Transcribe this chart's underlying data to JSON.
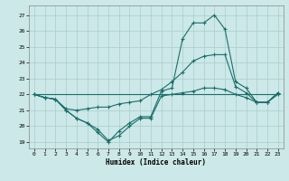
{
  "xlabel": "Humidex (Indice chaleur)",
  "bg_color": "#cce8e8",
  "grid_color": "#aacccc",
  "line_color": "#1a6e6a",
  "xlim": [
    -0.5,
    23.5
  ],
  "ylim": [
    18.6,
    27.6
  ],
  "yticks": [
    19,
    20,
    21,
    22,
    23,
    24,
    25,
    26,
    27
  ],
  "xticks": [
    0,
    1,
    2,
    3,
    4,
    5,
    6,
    7,
    8,
    9,
    10,
    11,
    12,
    13,
    14,
    15,
    16,
    17,
    18,
    19,
    20,
    21,
    22,
    23
  ],
  "curve1_x": [
    0,
    1,
    2,
    3,
    4,
    5,
    6,
    7,
    8,
    9,
    10,
    11,
    12,
    13,
    14,
    15,
    16,
    17,
    18,
    19,
    20,
    21,
    22,
    23
  ],
  "curve1_y": [
    22.0,
    21.8,
    21.7,
    21.0,
    20.5,
    20.2,
    19.6,
    19.0,
    19.7,
    20.2,
    20.6,
    20.6,
    22.2,
    22.4,
    25.5,
    26.5,
    26.5,
    27.0,
    26.1,
    22.8,
    22.4,
    21.5,
    21.5,
    22.1
  ],
  "curve2_x": [
    0,
    1,
    2,
    3,
    4,
    5,
    6,
    7,
    8,
    9,
    10,
    11,
    12,
    13,
    14,
    15,
    16,
    17,
    18,
    19,
    20,
    21,
    22,
    23
  ],
  "curve2_y": [
    22.0,
    21.8,
    21.7,
    21.1,
    21.0,
    21.1,
    21.2,
    21.2,
    21.4,
    21.5,
    21.6,
    22.0,
    22.3,
    22.8,
    23.4,
    24.1,
    24.4,
    24.5,
    24.5,
    22.5,
    22.1,
    21.5,
    21.5,
    22.1
  ],
  "curve3_x": [
    0,
    1,
    2,
    3,
    4,
    5,
    6,
    7,
    8,
    9,
    10,
    11,
    12,
    13,
    14,
    15,
    16,
    17,
    18,
    19,
    20,
    21,
    22,
    23
  ],
  "curve3_y": [
    22.0,
    21.8,
    21.7,
    21.0,
    20.5,
    20.2,
    19.8,
    19.1,
    19.4,
    20.0,
    20.5,
    20.5,
    21.9,
    22.0,
    22.1,
    22.2,
    22.4,
    22.4,
    22.3,
    22.0,
    21.8,
    21.5,
    21.5,
    22.0
  ],
  "hline_x": [
    0,
    23
  ],
  "hline_y": [
    22.0,
    22.0
  ]
}
